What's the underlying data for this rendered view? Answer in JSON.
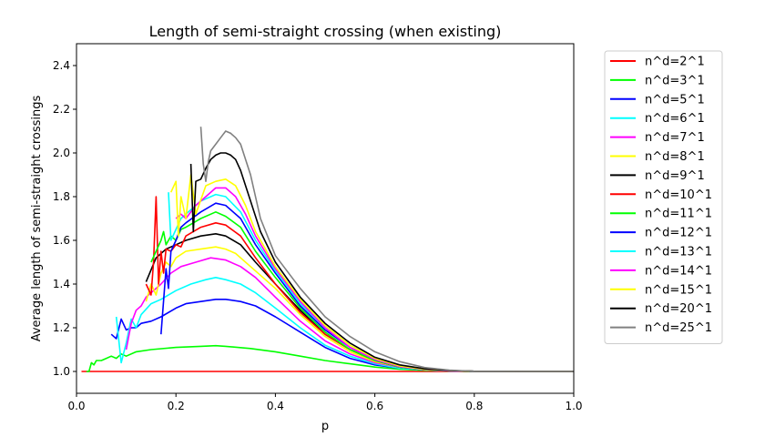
{
  "chart_data": {
    "type": "line",
    "title": "Length of semi-straight crossing (when existing)",
    "xlabel": "p",
    "ylabel": "Average length of semi-straight crossings",
    "xlim": [
      0.0,
      1.0
    ],
    "ylim": [
      0.9,
      2.5
    ],
    "xticks": [
      "0.0",
      "0.2",
      "0.4",
      "0.6",
      "0.8",
      "1.0"
    ],
    "yticks": [
      "1.0",
      "1.2",
      "1.4",
      "1.6",
      "1.8",
      "2.0",
      "2.2",
      "2.4"
    ],
    "grid": false,
    "legend_position": "outside-right",
    "series": [
      {
        "name": "n^d=2^1",
        "color": "#ff0000",
        "x": [
          0.01,
          0.1,
          0.2,
          0.3,
          0.4,
          0.5,
          0.6,
          0.7,
          0.8,
          0.9,
          1.0
        ],
        "y": [
          1.0,
          1.0,
          1.0,
          1.0,
          1.0,
          1.0,
          1.0,
          1.0,
          1.0,
          1.0,
          1.0
        ]
      },
      {
        "name": "n^d=3^1",
        "color": "#00ff00",
        "x": [
          0.02,
          0.025,
          0.03,
          0.035,
          0.04,
          0.05,
          0.06,
          0.07,
          0.08,
          0.09,
          0.1,
          0.12,
          0.15,
          0.2,
          0.25,
          0.28,
          0.3,
          0.35,
          0.4,
          0.45,
          0.5,
          0.55,
          0.6,
          0.65,
          0.7,
          0.75,
          0.8,
          0.9,
          1.0
        ],
        "y": [
          1.0,
          1.0,
          1.04,
          1.03,
          1.05,
          1.05,
          1.06,
          1.07,
          1.06,
          1.08,
          1.07,
          1.09,
          1.1,
          1.11,
          1.115,
          1.118,
          1.115,
          1.105,
          1.09,
          1.07,
          1.05,
          1.035,
          1.02,
          1.01,
          1.005,
          1.002,
          1.0,
          1.0,
          1.0
        ]
      },
      {
        "name": "n^d=5^1",
        "color": "#0000ff",
        "x": [
          0.07,
          0.08,
          0.09,
          0.1,
          0.11,
          0.12,
          0.13,
          0.15,
          0.17,
          0.2,
          0.22,
          0.25,
          0.28,
          0.3,
          0.33,
          0.36,
          0.4,
          0.45,
          0.5,
          0.55,
          0.6,
          0.65,
          0.7,
          0.75,
          0.8,
          0.9,
          1.0
        ],
        "y": [
          1.17,
          1.15,
          1.24,
          1.19,
          1.2,
          1.2,
          1.22,
          1.23,
          1.25,
          1.29,
          1.31,
          1.32,
          1.33,
          1.33,
          1.32,
          1.3,
          1.25,
          1.18,
          1.11,
          1.06,
          1.03,
          1.015,
          1.008,
          1.003,
          1.001,
          1.0,
          1.0
        ]
      },
      {
        "name": "n^d=6^1",
        "color": "#00ffff",
        "x": [
          0.08,
          0.09,
          0.1,
          0.11,
          0.12,
          0.13,
          0.15,
          0.17,
          0.2,
          0.23,
          0.26,
          0.28,
          0.3,
          0.33,
          0.36,
          0.4,
          0.45,
          0.5,
          0.55,
          0.6,
          0.65,
          0.7,
          0.75,
          0.8,
          0.9,
          1.0
        ],
        "y": [
          1.25,
          1.04,
          1.13,
          1.24,
          1.2,
          1.26,
          1.31,
          1.33,
          1.37,
          1.4,
          1.42,
          1.43,
          1.42,
          1.4,
          1.36,
          1.29,
          1.2,
          1.12,
          1.07,
          1.035,
          1.015,
          1.007,
          1.003,
          1.001,
          1.0,
          1.0
        ]
      },
      {
        "name": "n^d=7^1",
        "color": "#ff00ff",
        "x": [
          0.1,
          0.11,
          0.12,
          0.13,
          0.14,
          0.15,
          0.17,
          0.19,
          0.21,
          0.24,
          0.27,
          0.3,
          0.33,
          0.36,
          0.4,
          0.45,
          0.5,
          0.55,
          0.6,
          0.65,
          0.7,
          0.75,
          0.8,
          0.9,
          1.0
        ],
        "y": [
          1.1,
          1.22,
          1.28,
          1.3,
          1.34,
          1.36,
          1.4,
          1.45,
          1.48,
          1.5,
          1.52,
          1.51,
          1.48,
          1.43,
          1.34,
          1.23,
          1.14,
          1.08,
          1.04,
          1.02,
          1.008,
          1.003,
          1.001,
          1.0,
          1.0
        ]
      },
      {
        "name": "n^d=8^1",
        "color": "#ffff00",
        "x": [
          0.14,
          0.15,
          0.16,
          0.17,
          0.18,
          0.19,
          0.2,
          0.22,
          0.25,
          0.28,
          0.3,
          0.32,
          0.35,
          0.4,
          0.45,
          0.5,
          0.55,
          0.6,
          0.65,
          0.7,
          0.75,
          0.8,
          0.9,
          1.0
        ],
        "y": [
          1.32,
          1.4,
          1.35,
          1.45,
          1.5,
          1.48,
          1.52,
          1.55,
          1.56,
          1.57,
          1.56,
          1.54,
          1.48,
          1.38,
          1.26,
          1.16,
          1.09,
          1.045,
          1.02,
          1.008,
          1.003,
          1.001,
          1.0,
          1.0
        ]
      },
      {
        "name": "n^d=9^1",
        "color": "#000000",
        "x": [
          0.14,
          0.16,
          0.18,
          0.2,
          0.22,
          0.25,
          0.28,
          0.3,
          0.33,
          0.36,
          0.4,
          0.45,
          0.5,
          0.55,
          0.6,
          0.65,
          0.7,
          0.75,
          0.8,
          0.9,
          1.0
        ],
        "y": [
          1.41,
          1.52,
          1.56,
          1.58,
          1.6,
          1.62,
          1.63,
          1.62,
          1.58,
          1.5,
          1.4,
          1.28,
          1.17,
          1.1,
          1.05,
          1.02,
          1.008,
          1.003,
          1.001,
          1.0,
          1.0
        ]
      },
      {
        "name": "n^d=10^1",
        "color": "#ff0000",
        "x": [
          0.14,
          0.15,
          0.155,
          0.16,
          0.165,
          0.17,
          0.175,
          0.18,
          0.19,
          0.2,
          0.21,
          0.22,
          0.25,
          0.28,
          0.3,
          0.33,
          0.36,
          0.4,
          0.45,
          0.5,
          0.55,
          0.6,
          0.65,
          0.7,
          0.75,
          0.8,
          0.9,
          1.0
        ],
        "y": [
          1.4,
          1.35,
          1.5,
          1.8,
          1.4,
          1.55,
          1.45,
          1.56,
          1.55,
          1.58,
          1.57,
          1.62,
          1.66,
          1.68,
          1.67,
          1.62,
          1.52,
          1.4,
          1.27,
          1.17,
          1.1,
          1.05,
          1.02,
          1.008,
          1.003,
          1.001,
          1.0,
          1.0
        ]
      },
      {
        "name": "n^d=11^1",
        "color": "#00ff00",
        "x": [
          0.15,
          0.16,
          0.17,
          0.175,
          0.18,
          0.19,
          0.2,
          0.21,
          0.22,
          0.25,
          0.28,
          0.3,
          0.33,
          0.36,
          0.4,
          0.45,
          0.5,
          0.55,
          0.6,
          0.65,
          0.7,
          0.75,
          0.8,
          0.9,
          1.0
        ],
        "y": [
          1.5,
          1.55,
          1.6,
          1.64,
          1.58,
          1.62,
          1.6,
          1.65,
          1.66,
          1.7,
          1.73,
          1.71,
          1.66,
          1.55,
          1.43,
          1.29,
          1.18,
          1.1,
          1.05,
          1.02,
          1.008,
          1.003,
          1.001,
          1.0,
          1.0
        ]
      },
      {
        "name": "n^d=12^1",
        "color": "#0000ff",
        "x": [
          0.17,
          0.18,
          0.185,
          0.19,
          0.2,
          0.21,
          0.22,
          0.25,
          0.28,
          0.3,
          0.33,
          0.36,
          0.4,
          0.45,
          0.5,
          0.55,
          0.6,
          0.65,
          0.7,
          0.75,
          0.8,
          0.9,
          1.0
        ],
        "y": [
          1.17,
          1.47,
          1.38,
          1.55,
          1.6,
          1.66,
          1.68,
          1.73,
          1.77,
          1.76,
          1.7,
          1.58,
          1.45,
          1.3,
          1.19,
          1.11,
          1.055,
          1.022,
          1.009,
          1.003,
          1.001,
          1.0,
          1.0
        ]
      },
      {
        "name": "n^d=13^1",
        "color": "#00ffff",
        "x": [
          0.185,
          0.19,
          0.2,
          0.21,
          0.22,
          0.25,
          0.28,
          0.3,
          0.33,
          0.36,
          0.4,
          0.45,
          0.5,
          0.55,
          0.6,
          0.65,
          0.7,
          0.75,
          0.8,
          0.9,
          1.0
        ],
        "y": [
          1.82,
          1.6,
          1.65,
          1.7,
          1.72,
          1.78,
          1.81,
          1.8,
          1.73,
          1.6,
          1.46,
          1.31,
          1.2,
          1.11,
          1.055,
          1.022,
          1.009,
          1.003,
          1.001,
          1.0,
          1.0
        ]
      },
      {
        "name": "n^d=14^1",
        "color": "#ff00ff",
        "x": [
          0.2,
          0.21,
          0.22,
          0.24,
          0.26,
          0.28,
          0.3,
          0.32,
          0.34,
          0.36,
          0.4,
          0.45,
          0.5,
          0.55,
          0.6,
          0.65,
          0.7,
          0.75,
          0.8,
          0.9,
          1.0
        ],
        "y": [
          1.7,
          1.72,
          1.7,
          1.76,
          1.8,
          1.84,
          1.84,
          1.8,
          1.72,
          1.62,
          1.47,
          1.32,
          1.2,
          1.11,
          1.055,
          1.022,
          1.009,
          1.003,
          1.001,
          1.0,
          1.0
        ]
      },
      {
        "name": "n^d=15^1",
        "color": "#ffff00",
        "x": [
          0.19,
          0.2,
          0.205,
          0.21,
          0.22,
          0.23,
          0.24,
          0.26,
          0.28,
          0.3,
          0.32,
          0.34,
          0.36,
          0.4,
          0.45,
          0.5,
          0.55,
          0.6,
          0.65,
          0.7,
          0.75,
          0.8,
          0.9,
          1.0
        ],
        "y": [
          1.82,
          1.87,
          1.62,
          1.8,
          1.7,
          1.9,
          1.72,
          1.85,
          1.87,
          1.88,
          1.85,
          1.76,
          1.64,
          1.48,
          1.33,
          1.21,
          1.12,
          1.06,
          1.025,
          1.01,
          1.004,
          1.001,
          1.0,
          1.0
        ]
      },
      {
        "name": "n^d=20^1",
        "color": "#000000",
        "x": [
          0.23,
          0.235,
          0.24,
          0.25,
          0.26,
          0.27,
          0.28,
          0.29,
          0.3,
          0.31,
          0.32,
          0.33,
          0.35,
          0.37,
          0.4,
          0.45,
          0.5,
          0.55,
          0.6,
          0.65,
          0.7,
          0.75,
          0.8,
          0.9,
          1.0
        ],
        "y": [
          1.95,
          1.64,
          1.87,
          1.88,
          1.93,
          1.97,
          1.99,
          2.0,
          2.0,
          1.99,
          1.97,
          1.92,
          1.78,
          1.64,
          1.5,
          1.34,
          1.22,
          1.13,
          1.065,
          1.03,
          1.012,
          1.004,
          1.001,
          1.0,
          1.0
        ]
      },
      {
        "name": "n^d=25^1",
        "color": "#808080",
        "x": [
          0.25,
          0.255,
          0.26,
          0.265,
          0.27,
          0.28,
          0.29,
          0.3,
          0.31,
          0.32,
          0.33,
          0.35,
          0.37,
          0.4,
          0.45,
          0.5,
          0.55,
          0.6,
          0.65,
          0.7,
          0.75,
          0.8,
          0.9,
          1.0
        ],
        "y": [
          2.12,
          1.95,
          1.87,
          1.96,
          2.01,
          2.04,
          2.07,
          2.1,
          2.09,
          2.07,
          2.04,
          1.9,
          1.7,
          1.53,
          1.38,
          1.25,
          1.16,
          1.09,
          1.045,
          1.018,
          1.006,
          1.001,
          1.0,
          1.0
        ]
      }
    ]
  }
}
